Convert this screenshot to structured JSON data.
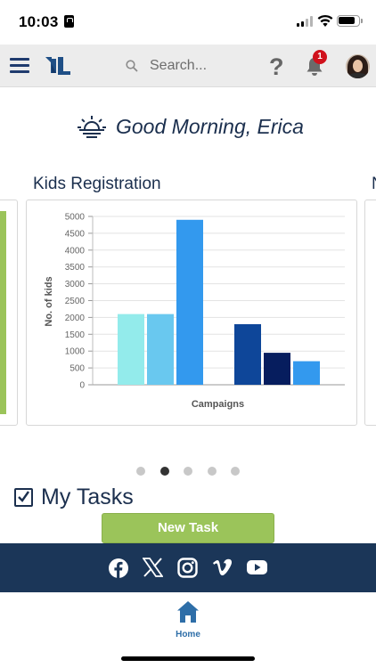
{
  "status_bar": {
    "time": "10:03"
  },
  "header": {
    "search_placeholder": "Search...",
    "help_label": "?",
    "notification_count": "1"
  },
  "greeting": {
    "text": "Good Morning, Erica"
  },
  "card": {
    "title": "Kids Registration",
    "next_title_fragment": "N"
  },
  "chart_data": {
    "type": "bar",
    "title": "",
    "xlabel": "Campaigns",
    "ylabel": "No. of kids",
    "ylim": [
      0,
      5000
    ],
    "yticks": [
      0,
      500,
      1000,
      1500,
      2000,
      2500,
      3000,
      3500,
      4000,
      4500,
      5000
    ],
    "grid": true,
    "series": [
      {
        "values": [
          2100,
          2100,
          4900
        ],
        "colors": [
          "#93ebeb",
          "#69c8ef",
          "#3399ee"
        ]
      },
      {
        "values": [
          1800,
          950,
          700
        ],
        "colors": [
          "#0e4699",
          "#061d5e",
          "#3399ee"
        ]
      }
    ]
  },
  "carousel": {
    "page_count": 5,
    "active_index": 1
  },
  "tasks": {
    "title": "My Tasks",
    "new_task_label": "New Task"
  },
  "social": [
    "facebook-icon",
    "x-icon",
    "instagram-icon",
    "vimeo-icon",
    "youtube-icon"
  ],
  "tab_bar": {
    "home_label": "Home"
  },
  "colors": {
    "navy": "#1b3658",
    "accent_green": "#9bc45a",
    "link_blue": "#2e6ea8",
    "badge_red": "#d0111c"
  }
}
